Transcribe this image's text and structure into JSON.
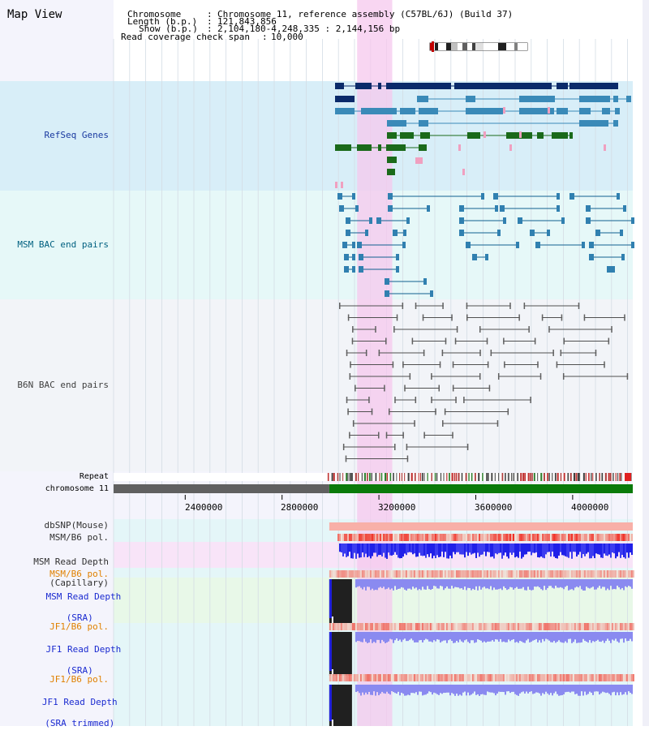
{
  "page": {
    "title": "Map View"
  },
  "header": {
    "chromosome_label": "Chromosome",
    "chromosome_value": "Chromosome 11, reference assembly (C57BL/6J) (Build 37)",
    "length_label": "Length (b.p.)",
    "length_value": "121,843,856",
    "show_label": "Show (b.p.)",
    "show_value": "2,104,180-4,248,335 : 2,144,156 bp",
    "coverage_label": "Read coverage check span",
    "coverage_value": "10,000",
    "separator": ":"
  },
  "tracks": {
    "refseq": {
      "label": "RefSeq Genes",
      "color": "#1a3aa0"
    },
    "msm_bac": {
      "label": "MSM BAC end pairs",
      "color": "#006080"
    },
    "b6n_bac": {
      "label": "B6N BAC end pairs",
      "color": "#404040"
    },
    "repeat": {
      "label": "Repeat"
    },
    "chromosome": {
      "label": "chromosome 11"
    },
    "dbsnp": {
      "label": "dbSNP(Mouse)"
    },
    "msm_pol": {
      "label": "MSM/B6 pol."
    },
    "msm_depth_cap": {
      "label_line1": "MSM Read Depth",
      "label_line2": "(Capillary)"
    },
    "msm_pol_sra": {
      "label": "MSM/B6 pol.",
      "color": "#e08000"
    },
    "msm_depth_sra": {
      "label_line1": "MSM Read Depth",
      "label_line2": "(SRA)",
      "color": "#1a2ad0"
    },
    "jf1_pol": {
      "label": "JF1/B6 pol.",
      "color": "#e08000"
    },
    "jf1_depth": {
      "label_line1": "JF1 Read Depth",
      "label_line2": "(SRA)",
      "color": "#1a2ad0"
    },
    "jf1_pol_trim": {
      "label": "JF1/B6 pol.",
      "color": "#e08000"
    },
    "jf1_depth_trim": {
      "label_line1": "JF1 Read Depth",
      "label_line2": "(SRA trimmed)",
      "color": "#1a2ad0"
    }
  },
  "axis": {
    "ticks": [
      {
        "value": 2400000,
        "label": "2400000"
      },
      {
        "value": 2800000,
        "label": "2800000"
      },
      {
        "value": 3200000,
        "label": "3200000"
      },
      {
        "value": 3600000,
        "label": "3600000"
      },
      {
        "value": 4000000,
        "label": "4000000"
      }
    ],
    "range": [
      2104180,
      4248335
    ],
    "highlight_range": [
      3110000,
      3255000
    ],
    "data_start": 2995000
  },
  "colors": {
    "refseq_bg": "#d8eef8",
    "msm_bac_bg": "#e6f8f8",
    "b6n_bg": "#f2f4f8",
    "highlight": "#f5c8ee",
    "gene_dark": "#0a2a6a",
    "gene_light": "#3a8ab8",
    "gene_green": "#1a6a1a",
    "gene_pink": "#f0a0c0",
    "chrom_green": "#0a7a0a",
    "chrom_gray": "#606060",
    "depth_blue": "#2828e0",
    "depth_light": "#8888ee",
    "pol_red": "#e03030",
    "black_block": "#202020"
  }
}
